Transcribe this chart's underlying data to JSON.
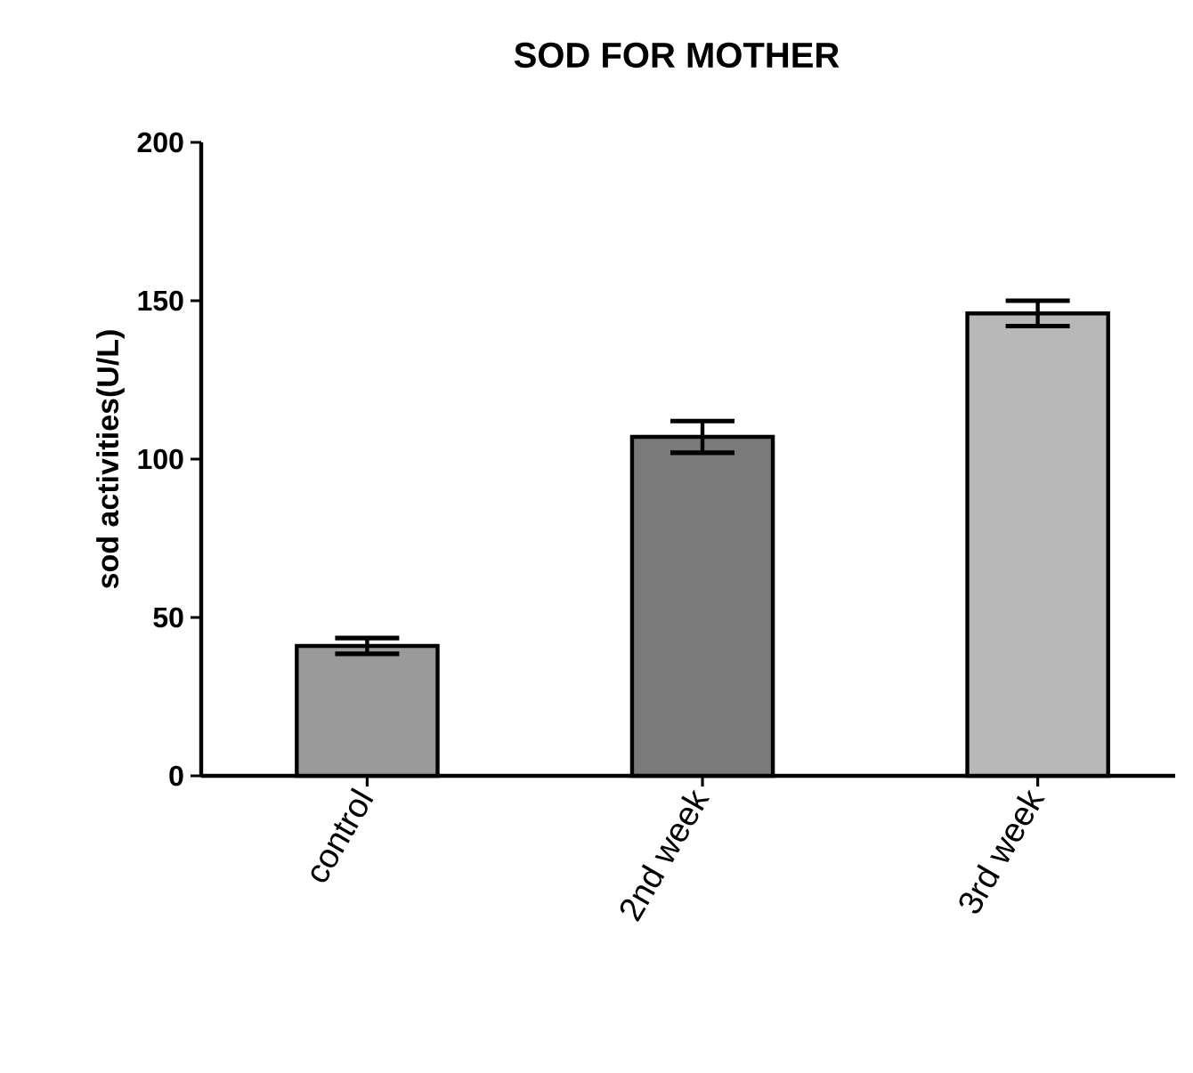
{
  "chart_data": {
    "type": "bar",
    "title": "SOD FOR MOTHER",
    "ylabel": "sod activities(U/L)",
    "categories": [
      "control",
      "2nd week",
      "3rd week"
    ],
    "values": [
      41,
      107,
      146
    ],
    "errors": [
      2.5,
      5,
      4
    ],
    "colors": [
      "#9a9a9a",
      "#7a7a7a",
      "#b8b8b8"
    ],
    "ylim": [
      0,
      200
    ],
    "yticks": [
      0,
      50,
      100,
      150,
      200
    ],
    "grid": false
  }
}
